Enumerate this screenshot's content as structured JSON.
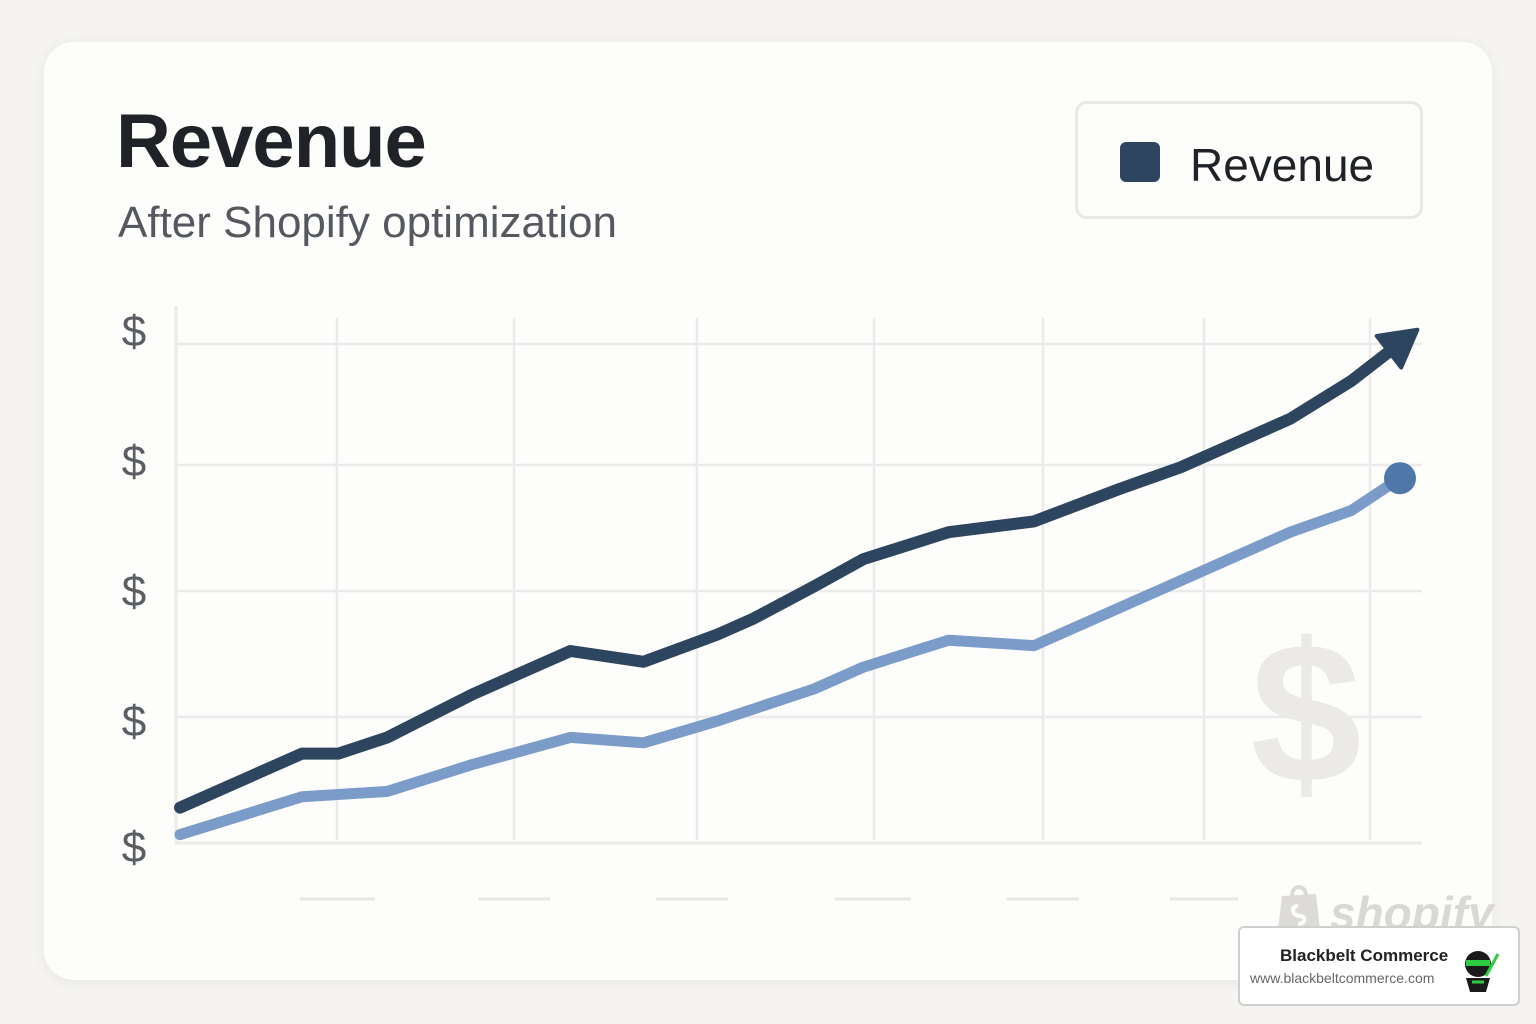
{
  "colors": {
    "primary_series": "#2e4560",
    "secondary_series": "#7b9cc9",
    "grid": "#ebebea",
    "tick_text": "#5a5d62"
  },
  "watermark": {
    "text": "shopify",
    "icon": "shopify-bag-icon"
  },
  "badge": {
    "name": "Blackbelt Commerce",
    "url": "www.blackbeltcommerce.com",
    "icon": "ninja-logo-icon"
  },
  "chart_data": {
    "type": "line",
    "title": "Revenue",
    "subtitle": "After Shopify optimization",
    "legend": [
      {
        "label": "Revenue",
        "color": "#2e4560"
      }
    ],
    "legend_position": "top-right",
    "y_tick_labels": [
      "$",
      "$",
      "$",
      "$",
      "$"
    ],
    "x_tick_labels": [],
    "grid": true,
    "ylim": [
      0,
      100
    ],
    "xlim": [
      0,
      1
    ],
    "background_icon": "dollar-sign-icon",
    "series": [
      {
        "name": "Revenue",
        "color": "#2e4560",
        "end_marker": "arrow",
        "points": [
          [
            0,
            6
          ],
          [
            0.1,
            16
          ],
          [
            0.13,
            16
          ],
          [
            0.17,
            19
          ],
          [
            0.24,
            27
          ],
          [
            0.32,
            35
          ],
          [
            0.38,
            33
          ],
          [
            0.44,
            38
          ],
          [
            0.47,
            41
          ],
          [
            0.52,
            47
          ],
          [
            0.56,
            52
          ],
          [
            0.63,
            57
          ],
          [
            0.7,
            59
          ],
          [
            0.77,
            65
          ],
          [
            0.82,
            69
          ],
          [
            0.86,
            73
          ],
          [
            0.91,
            78
          ],
          [
            0.96,
            85
          ],
          [
            1.0,
            92
          ]
        ]
      },
      {
        "color": "#7b9cc9",
        "end_marker": "dot",
        "points": [
          [
            0,
            1
          ],
          [
            0.1,
            8
          ],
          [
            0.17,
            9
          ],
          [
            0.24,
            14
          ],
          [
            0.32,
            19
          ],
          [
            0.38,
            18
          ],
          [
            0.44,
            22
          ],
          [
            0.52,
            28
          ],
          [
            0.56,
            32
          ],
          [
            0.63,
            37
          ],
          [
            0.7,
            36
          ],
          [
            0.77,
            43
          ],
          [
            0.82,
            48
          ],
          [
            0.86,
            52
          ],
          [
            0.91,
            57
          ],
          [
            0.96,
            61
          ],
          [
            1.0,
            67
          ]
        ]
      }
    ]
  }
}
